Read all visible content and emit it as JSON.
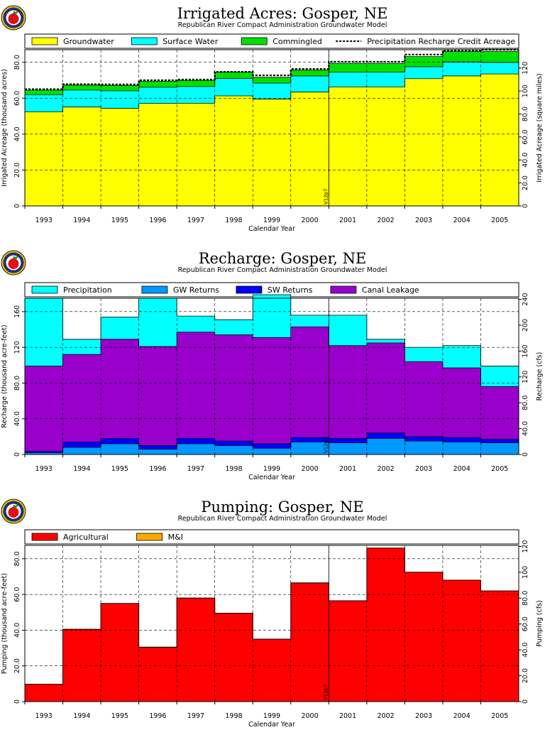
{
  "figure_label": "Gosper, NE groundwater model summary",
  "logo_label": "apple seal",
  "chart_data": [
    {
      "type": "area",
      "title": "Irrigated Acres: Gosper, NE",
      "subtitle": "Republican River Compact Administration Groundwater Model",
      "xlabel": "Calendar Year",
      "ylabel": "Irrigated Acreage (thousand acres)",
      "ylabel_right": "Irrigated Acreage (square miles)",
      "categories": [
        "1993",
        "1994",
        "1995",
        "1996",
        "1997",
        "1998",
        "1999",
        "2000",
        "2001",
        "2002",
        "2003",
        "2004",
        "2005"
      ],
      "ylim": [
        0,
        87
      ],
      "yticks": [
        0,
        20,
        40,
        60,
        80
      ],
      "ytick_labels": [
        "0",
        "20.0",
        "40.0",
        "60.0",
        "80.0"
      ],
      "right_ylim": [
        0,
        135.9
      ],
      "right_yticks": [
        0,
        20,
        40,
        60,
        80,
        100,
        120
      ],
      "right_ytick_labels": [
        "0",
        "20.0",
        "40.0",
        "60.0",
        "80.0",
        "100",
        "120"
      ],
      "marker_label": "V12p7",
      "marker_after_index": 7,
      "colors": {
        "Groundwater": "#ffff00",
        "Surface Water": "#00ffff",
        "Commingled": "#00e000"
      },
      "series": [
        {
          "name": "Groundwater",
          "values": [
            52.4,
            55.1,
            54.4,
            57.1,
            57.2,
            61.3,
            59.5,
            63.4,
            66.3,
            66.3,
            70.9,
            72.4,
            73.5
          ]
        },
        {
          "name": "Surface Water",
          "values": [
            9.6,
            9.4,
            9.7,
            9.0,
            9.3,
            9.7,
            8.9,
            9.0,
            8.2,
            8.2,
            6.6,
            7.8,
            6.4
          ]
        },
        {
          "name": "Commingled",
          "values": [
            2.5,
            2.8,
            3.0,
            3.3,
            3.4,
            3.5,
            3.2,
            3.2,
            4.9,
            4.9,
            5.7,
            5.8,
            6.1
          ]
        }
      ],
      "line_series": {
        "name": "Precipitation Recharge Credit Acreage",
        "values": [
          65.0,
          67.8,
          67.7,
          70.0,
          70.4,
          74.7,
          72.7,
          76.3,
          80.3,
          80.3,
          84.3,
          86.5,
          87.0
        ]
      }
    },
    {
      "type": "area",
      "title": "Recharge: Gosper, NE",
      "subtitle": "Republican River Compact Administration Groundwater Model",
      "xlabel": "Calendar Year",
      "ylabel": "Recharge (thousand acre-feet)",
      "ylabel_right": "Recharge (cfs)",
      "categories": [
        "1993",
        "1994",
        "1995",
        "1996",
        "1997",
        "1998",
        "1999",
        "2000",
        "2001",
        "2002",
        "2003",
        "2004",
        "2005"
      ],
      "ylim": [
        0,
        175
      ],
      "yticks": [
        0,
        40,
        80,
        120,
        160
      ],
      "ytick_labels": [
        "0",
        "40.0",
        "80.0",
        "120",
        "160"
      ],
      "right_ylim": [
        0,
        241.7
      ],
      "right_yticks": [
        0,
        40,
        80,
        120,
        160,
        200,
        240
      ],
      "right_ytick_labels": [
        "0",
        "40.0",
        "80.0",
        "120",
        "160",
        "200",
        "240"
      ],
      "marker_label": "V12p7",
      "marker_after_index": 7,
      "colors": {
        "Precipitation": "#00ffff",
        "GW Returns": "#0099ff",
        "SW Returns": "#0000ff",
        "Canal Leakage": "#9900cc"
      },
      "series": [
        {
          "name": "GW Returns",
          "values": [
            2.0,
            8.0,
            12.0,
            6.0,
            12.0,
            10.0,
            7.0,
            14.0,
            13.0,
            18.0,
            15.0,
            14.0,
            13.0
          ]
        },
        {
          "name": "SW Returns",
          "values": [
            1.5,
            6.0,
            6.0,
            4.0,
            6.0,
            5.0,
            5.0,
            5.0,
            5.0,
            6.0,
            5.0,
            5.0,
            4.0
          ]
        },
        {
          "name": "Canal Leakage",
          "values": [
            95.5,
            98.0,
            111.0,
            111.0,
            119.0,
            119.0,
            119.0,
            124.0,
            104.0,
            101.0,
            84.0,
            78.0,
            59.0
          ]
        },
        {
          "name": "Precipitation",
          "values": [
            76.0,
            17.0,
            25.0,
            54.0,
            18.0,
            17.0,
            48.0,
            13.0,
            34.0,
            4.0,
            16.0,
            25.0,
            23.0
          ]
        }
      ]
    },
    {
      "type": "area",
      "title": "Pumping: Gosper, NE",
      "subtitle": "Republican River Compact Administration Groundwater Model",
      "xlabel": "Calendar Year",
      "ylabel": "Pumping (thousand acre-feet)",
      "ylabel_right": "Pumping (cfs)",
      "categories": [
        "1993",
        "1994",
        "1995",
        "1996",
        "1997",
        "1998",
        "1999",
        "2000",
        "2001",
        "2002",
        "2003",
        "2004",
        "2005"
      ],
      "ylim": [
        0,
        87.5
      ],
      "yticks": [
        0,
        20,
        40,
        60,
        80
      ],
      "ytick_labels": [
        "0",
        "20.0",
        "40.0",
        "60.0",
        "80.0"
      ],
      "right_ylim": [
        0,
        120.8
      ],
      "right_yticks": [
        0,
        20,
        40,
        60,
        80,
        100,
        120
      ],
      "right_ytick_labels": [
        "0",
        "20.0",
        "40.0",
        "60.0",
        "80.0",
        "100",
        "120"
      ],
      "marker_label": "V12p7",
      "marker_after_index": 7,
      "colors": {
        "Agricultural": "#ff0000",
        "M&I": "#ffaa00"
      },
      "series": [
        {
          "name": "Agricultural",
          "values": [
            9.8,
            40.5,
            55.0,
            30.5,
            58.0,
            49.5,
            35.0,
            66.5,
            56.5,
            86.0,
            72.5,
            68.0,
            62.0
          ]
        },
        {
          "name": "M&I",
          "values": [
            0,
            0,
            0,
            0,
            0,
            0,
            0,
            0,
            0,
            0,
            0,
            0,
            0
          ]
        }
      ]
    }
  ]
}
